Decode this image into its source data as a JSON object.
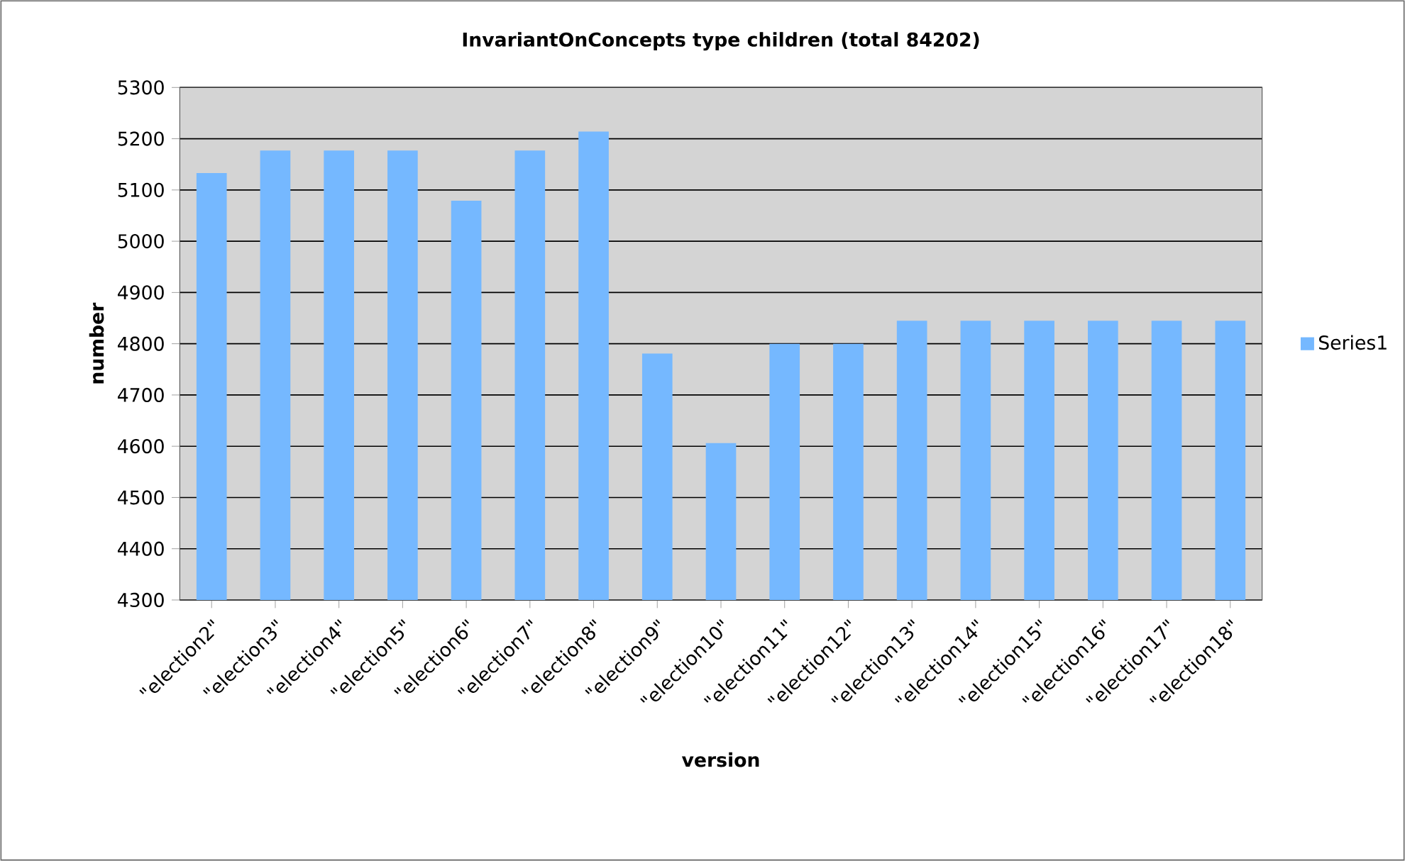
{
  "chart_data": {
    "type": "bar",
    "title": "InvariantOnConcepts type children (total 84202)",
    "xlabel": "version",
    "ylabel": "number",
    "categories": [
      "\"election2\"",
      "\"election3\"",
      "\"election4\"",
      "\"election5\"",
      "\"election6\"",
      "\"election7\"",
      "\"election8\"",
      "\"election9\"",
      "\"election10\"",
      "\"election11\"",
      "\"election12\"",
      "\"election13\"",
      "\"election14\"",
      "\"election15\"",
      "\"election16\"",
      "\"election17\"",
      "\"election18\""
    ],
    "series": [
      {
        "name": "Series1",
        "color": "#75b8ff",
        "values": [
          5133,
          5177,
          5177,
          5177,
          5079,
          5177,
          5214,
          4781,
          4606,
          4800,
          4800,
          4845,
          4845,
          4845,
          4845,
          4845,
          4845
        ]
      }
    ],
    "ylim": [
      4300,
      5300
    ],
    "yticks": [
      4300,
      4400,
      4500,
      4600,
      4700,
      4800,
      4900,
      5000,
      5100,
      5200,
      5300
    ],
    "grid": "y",
    "legend": "right"
  }
}
